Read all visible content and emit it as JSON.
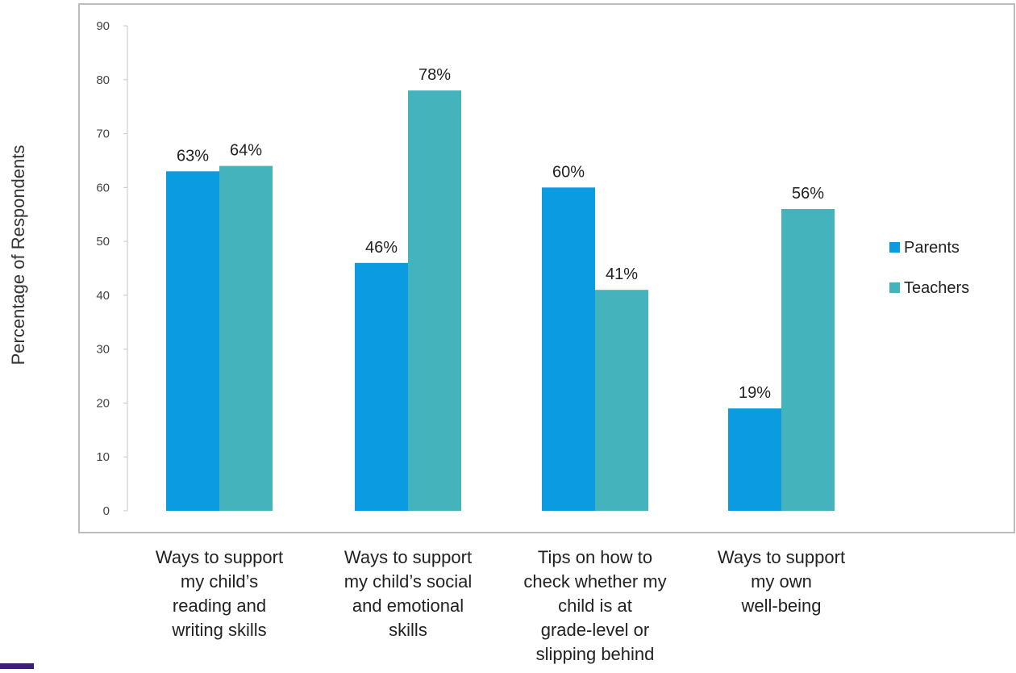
{
  "chart_data": {
    "type": "bar",
    "title": "",
    "xlabel": "",
    "ylabel": "Percentage of Respondents",
    "ylim": [
      0,
      90
    ],
    "yticks": [
      0,
      10,
      20,
      30,
      40,
      50,
      60,
      70,
      80,
      90
    ],
    "categories": [
      [
        "Ways to support",
        "my child’s",
        "reading and",
        "writing skills"
      ],
      [
        "Ways to support",
        "my child’s social",
        "and emotional",
        "skills"
      ],
      [
        "Tips on how to",
        "check whether my",
        "child is at",
        "grade-level or",
        "slipping behind"
      ],
      [
        "Ways to support",
        "my own",
        "well-being"
      ]
    ],
    "series": [
      {
        "name": "Parents",
        "color": "#0a9be0",
        "values": [
          63,
          46,
          60,
          19
        ],
        "labels": [
          "63%",
          "46%",
          "60%",
          "19%"
        ]
      },
      {
        "name": "Teachers",
        "color": "#45b3bb",
        "values": [
          64,
          78,
          41,
          56
        ],
        "labels": [
          "64%",
          "78%",
          "41%",
          "56%"
        ]
      }
    ],
    "legend": "right",
    "grid": false
  },
  "colors": {
    "frame": "#bdbdbd",
    "corner_mark": "#3b1f73"
  }
}
